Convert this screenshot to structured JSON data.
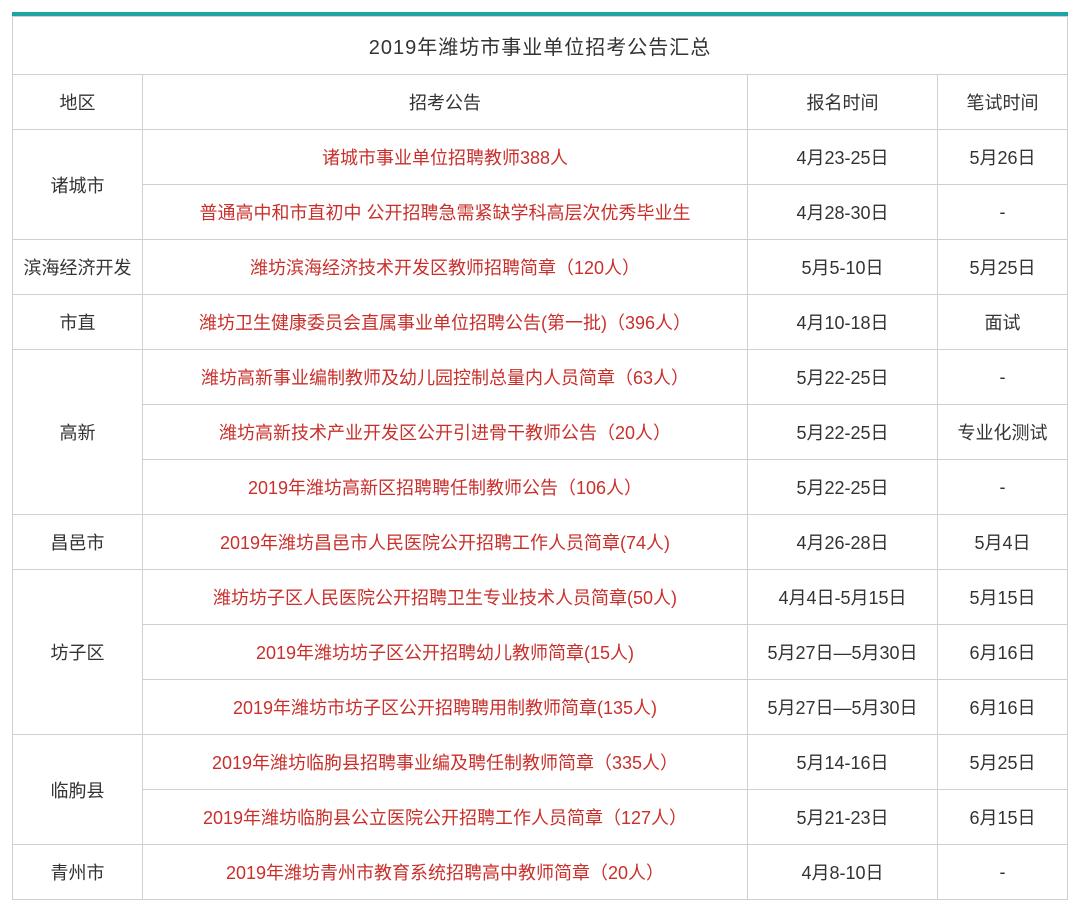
{
  "title": "2019年潍坊市事业单位招考公告汇总",
  "headers": {
    "region": "地区",
    "announcement": "招考公告",
    "register_time": "报名时间",
    "exam_time": "笔试时间"
  },
  "colors": {
    "header_border_top": "#1fa3a3",
    "border": "#d0d0d0",
    "announcement_text": "#c9302c",
    "normal_text": "#333333",
    "background": "#ffffff"
  },
  "rows": [
    {
      "region": "诸城市",
      "announcement": "诸城市事业单位招聘教师388人",
      "register_time": "4月23-25日",
      "exam_time": "5月26日"
    },
    {
      "region": "诸城市",
      "announcement": "普通高中和市直初中 公开招聘急需紧缺学科高层次优秀毕业生",
      "register_time": "4月28-30日",
      "exam_time": "-"
    },
    {
      "region": "滨海经济开发",
      "announcement": "潍坊滨海经济技术开发区教师招聘简章（120人）",
      "register_time": "5月5-10日",
      "exam_time": "5月25日"
    },
    {
      "region": "市直",
      "announcement": "潍坊卫生健康委员会直属事业单位招聘公告(第一批)（396人）",
      "register_time": "4月10-18日",
      "exam_time": "面试"
    },
    {
      "region": "高新",
      "announcement": "潍坊高新事业编制教师及幼儿园控制总量内人员简章（63人）",
      "register_time": "5月22-25日",
      "exam_time": "-"
    },
    {
      "region": "高新",
      "announcement": "潍坊高新技术产业开发区公开引进骨干教师公告（20人）",
      "register_time": "5月22-25日",
      "exam_time": "专业化测试"
    },
    {
      "region": "高新",
      "announcement": "2019年潍坊高新区招聘聘任制教师公告（106人）",
      "register_time": "5月22-25日",
      "exam_time": "-"
    },
    {
      "region": "昌邑市",
      "announcement": "2019年潍坊昌邑市人民医院公开招聘工作人员简章(74人)",
      "register_time": "4月26-28日",
      "exam_time": "5月4日"
    },
    {
      "region": "坊子区",
      "announcement": "潍坊坊子区人民医院公开招聘卫生专业技术人员简章(50人)",
      "register_time": "4月4日-5月15日",
      "exam_time": "5月15日"
    },
    {
      "region": "坊子区",
      "announcement": "2019年潍坊坊子区公开招聘幼儿教师简章(15人)",
      "register_time": "5月27日—5月30日",
      "exam_time": "6月16日"
    },
    {
      "region": "坊子区",
      "announcement": "2019年潍坊市坊子区公开招聘聘用制教师简章(135人)",
      "register_time": "5月27日—5月30日",
      "exam_time": "6月16日"
    },
    {
      "region": "临朐县",
      "announcement": "2019年潍坊临朐县招聘事业编及聘任制教师简章（335人）",
      "register_time": "5月14-16日",
      "exam_time": "5月25日"
    },
    {
      "region": "临朐县",
      "announcement": "2019年潍坊临朐县公立医院公开招聘工作人员简章（127人）",
      "register_time": "5月21-23日",
      "exam_time": "6月15日"
    },
    {
      "region": "青州市",
      "announcement": "2019年潍坊青州市教育系统招聘高中教师简章（20人）",
      "register_time": "4月8-10日",
      "exam_time": "-"
    }
  ]
}
